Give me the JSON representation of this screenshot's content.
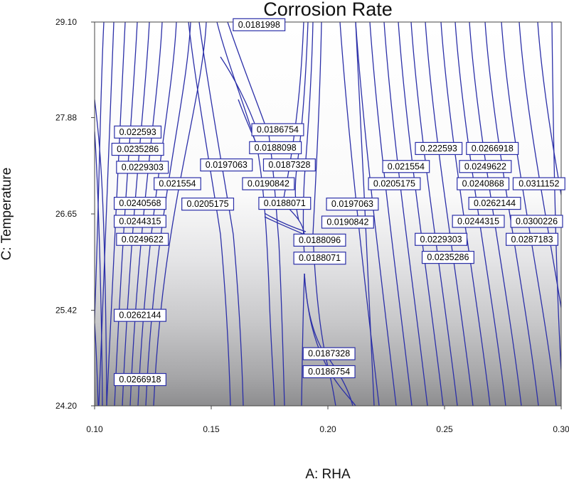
{
  "chart_data": {
    "type": "contour",
    "title": "Corrosion Rate",
    "xlabel": "A: RHA",
    "ylabel": "C: Temperature",
    "xlim": [
      0.1,
      0.3
    ],
    "ylim": [
      24.2,
      29.1
    ],
    "x_ticks": [
      "0.10",
      "0.15",
      "0.20",
      "0.25",
      "0.30"
    ],
    "y_ticks": [
      "24.20",
      "25.42",
      "26.65",
      "27.88",
      "29.10"
    ],
    "line_color": "#2b2fa8",
    "grid": false,
    "background": "grayscale gradient, white at top to dark gray at bottom",
    "contour_labels": [
      {
        "text": "0.0181998",
        "x": 0.1705,
        "y": 29.07
      },
      {
        "text": "0.0186754",
        "x": 0.1785,
        "y": 27.73
      },
      {
        "text": "0.0188098",
        "x": 0.1775,
        "y": 27.5
      },
      {
        "text": "0.0187328",
        "x": 0.1835,
        "y": 27.28
      },
      {
        "text": "0.0197063",
        "x": 0.1565,
        "y": 27.28
      },
      {
        "text": "0.0190842",
        "x": 0.1745,
        "y": 27.04
      },
      {
        "text": "0.0188071",
        "x": 0.1815,
        "y": 26.79
      },
      {
        "text": "0.0205175",
        "x": 0.1485,
        "y": 26.78
      },
      {
        "text": "0.022593",
        "x": 0.1185,
        "y": 27.7
      },
      {
        "text": "0.0235286",
        "x": 0.1185,
        "y": 27.48
      },
      {
        "text": "0.0229303",
        "x": 0.1205,
        "y": 27.25
      },
      {
        "text": "0.021554",
        "x": 0.1355,
        "y": 27.04
      },
      {
        "text": "0.0240568",
        "x": 0.1195,
        "y": 26.79
      },
      {
        "text": "0.0244315",
        "x": 0.1195,
        "y": 26.56
      },
      {
        "text": "0.0249622",
        "x": 0.1205,
        "y": 26.33
      },
      {
        "text": "0.0262144",
        "x": 0.1195,
        "y": 25.36
      },
      {
        "text": "0.0266918",
        "x": 0.1195,
        "y": 24.54
      },
      {
        "text": "0.0197063",
        "x": 0.2105,
        "y": 26.78
      },
      {
        "text": "0.0190842",
        "x": 0.2085,
        "y": 26.55
      },
      {
        "text": "0.0188096",
        "x": 0.1965,
        "y": 26.32
      },
      {
        "text": "0.0188071",
        "x": 0.1965,
        "y": 26.09
      },
      {
        "text": "0.0187328",
        "x": 0.2005,
        "y": 24.87
      },
      {
        "text": "0.0186754",
        "x": 0.2005,
        "y": 24.64
      },
      {
        "text": "0.0205175",
        "x": 0.2285,
        "y": 27.04
      },
      {
        "text": "0.021554",
        "x": 0.2335,
        "y": 27.26
      },
      {
        "text": "0.222593",
        "x": 0.2475,
        "y": 27.49
      },
      {
        "text": "0.0266918",
        "x": 0.2705,
        "y": 27.49
      },
      {
        "text": "0.0249622",
        "x": 0.2675,
        "y": 27.26
      },
      {
        "text": "0.0240868",
        "x": 0.2665,
        "y": 27.04
      },
      {
        "text": "0.0311152",
        "x": 0.2905,
        "y": 27.04
      },
      {
        "text": "0.0262144",
        "x": 0.2715,
        "y": 26.79
      },
      {
        "text": "0.0244315",
        "x": 0.2645,
        "y": 26.56
      },
      {
        "text": "0.0300226",
        "x": 0.2895,
        "y": 26.56
      },
      {
        "text": "0.0229303",
        "x": 0.2485,
        "y": 26.33
      },
      {
        "text": "0.0287183",
        "x": 0.2875,
        "y": 26.33
      },
      {
        "text": "0.0235286",
        "x": 0.2515,
        "y": 26.1
      }
    ]
  }
}
